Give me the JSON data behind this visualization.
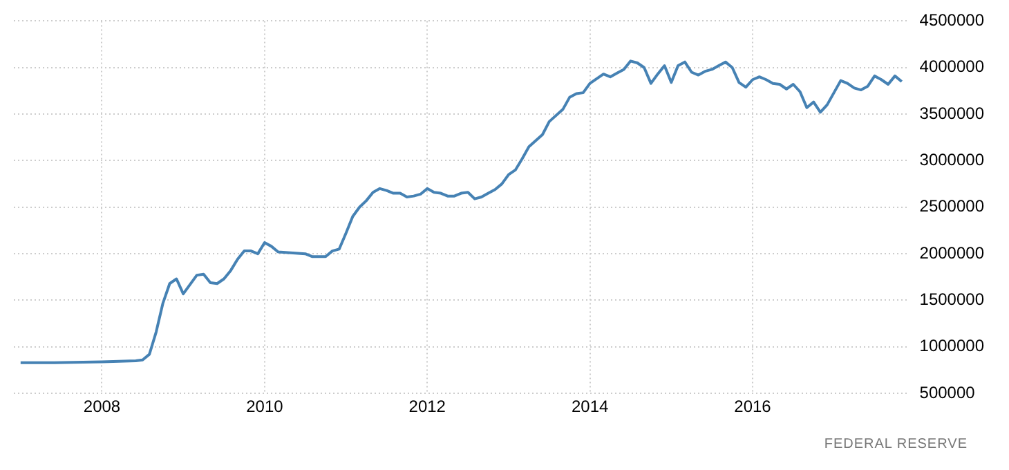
{
  "chart_data": {
    "type": "line",
    "annotations": [
      "FEDERAL RESERVE"
    ],
    "x": [
      "2007-01",
      "2007-06",
      "2008-01",
      "2008-06",
      "2008-07",
      "2008-08",
      "2008-09",
      "2008-10",
      "2008-11",
      "2008-12",
      "2009-01",
      "2009-02",
      "2009-03",
      "2009-04",
      "2009-05",
      "2009-06",
      "2009-07",
      "2009-08",
      "2009-09",
      "2009-10",
      "2009-11",
      "2009-12",
      "2010-01",
      "2010-02",
      "2010-03",
      "2010-07",
      "2010-08",
      "2010-10",
      "2010-11",
      "2010-12",
      "2011-01",
      "2011-02",
      "2011-03",
      "2011-04",
      "2011-05",
      "2011-06",
      "2011-07",
      "2011-08",
      "2011-09",
      "2011-10",
      "2011-11",
      "2011-12",
      "2012-01",
      "2012-02",
      "2012-03",
      "2012-04",
      "2012-05",
      "2012-06",
      "2012-07",
      "2012-08",
      "2012-09",
      "2012-10",
      "2012-11",
      "2012-12",
      "2013-01",
      "2013-02",
      "2013-03",
      "2013-04",
      "2013-06",
      "2013-07",
      "2013-09",
      "2013-10",
      "2013-11",
      "2013-12",
      "2014-01",
      "2014-02",
      "2014-03",
      "2014-04",
      "2014-05",
      "2014-06",
      "2014-07",
      "2014-08",
      "2014-09",
      "2014-10",
      "2014-11",
      "2014-12",
      "2015-01",
      "2015-02",
      "2015-03",
      "2015-04",
      "2015-05",
      "2015-06",
      "2015-07",
      "2015-08",
      "2015-09",
      "2015-10",
      "2015-11",
      "2015-12",
      "2016-01",
      "2016-02",
      "2016-03",
      "2016-04",
      "2016-05",
      "2016-06",
      "2016-07",
      "2016-08",
      "2016-09",
      "2016-10",
      "2016-11",
      "2016-12",
      "2017-01",
      "2017-02",
      "2017-03",
      "2017-04",
      "2017-05",
      "2017-06",
      "2017-07",
      "2017-08",
      "2017-09",
      "2017-10",
      "2017-11"
    ],
    "series": [
      {
        "color": "#4682b4",
        "values": [
          830000,
          830000,
          840000,
          850000,
          860000,
          920000,
          1160000,
          1470000,
          1680000,
          1730000,
          1570000,
          1670000,
          1770000,
          1780000,
          1690000,
          1680000,
          1730000,
          1820000,
          1940000,
          2030000,
          2030000,
          2000000,
          2120000,
          2080000,
          2020000,
          2000000,
          1970000,
          1970000,
          2030000,
          2050000,
          2220000,
          2400000,
          2500000,
          2570000,
          2660000,
          2700000,
          2680000,
          2650000,
          2650000,
          2610000,
          2620000,
          2640000,
          2700000,
          2660000,
          2650000,
          2620000,
          2620000,
          2650000,
          2660000,
          2590000,
          2610000,
          2650000,
          2690000,
          2750000,
          2850000,
          2900000,
          3020000,
          3150000,
          3280000,
          3420000,
          3550000,
          3680000,
          3720000,
          3730000,
          3830000,
          3880000,
          3930000,
          3900000,
          3940000,
          3980000,
          4070000,
          4050000,
          4000000,
          3830000,
          3930000,
          4020000,
          3840000,
          4020000,
          4060000,
          3950000,
          3920000,
          3960000,
          3980000,
          4020000,
          4060000,
          4000000,
          3840000,
          3790000,
          3870000,
          3900000,
          3870000,
          3830000,
          3820000,
          3770000,
          3820000,
          3740000,
          3570000,
          3630000,
          3520000,
          3600000,
          3730000,
          3860000,
          3830000,
          3780000,
          3760000,
          3800000,
          3910000,
          3870000,
          3820000,
          3910000,
          3850000
        ]
      }
    ],
    "xlim": [
      "2006-12",
      "2017-12"
    ],
    "xticks": [
      "2008",
      "2010",
      "2012",
      "2014",
      "2016"
    ],
    "ylim": [
      500000,
      4500000
    ],
    "yticks": [
      500000,
      1000000,
      1500000,
      2000000,
      2500000,
      3000000,
      3500000,
      4000000,
      4500000
    ],
    "grid": true,
    "marker": "none",
    "line_style": "solid"
  }
}
